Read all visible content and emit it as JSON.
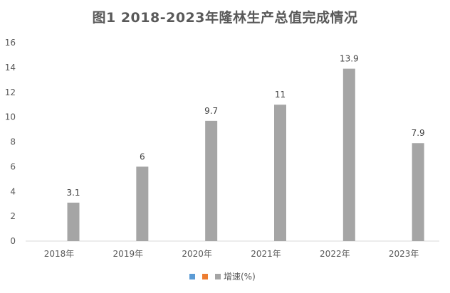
{
  "chart_data": {
    "type": "bar",
    "title": "图1  2018-2023年隆林生产总值完成情况",
    "categories": [
      "2018年",
      "2019年",
      "2020年",
      "2021年",
      "2022年",
      "2023年"
    ],
    "series": [
      {
        "name": "",
        "values": [
          null,
          null,
          null,
          null,
          null,
          null
        ],
        "color": "#5B9BD5"
      },
      {
        "name": "",
        "values": [
          null,
          null,
          null,
          null,
          null,
          null
        ],
        "color": "#ED7D31"
      },
      {
        "name": "增速(%)",
        "values": [
          3.1,
          6,
          9.7,
          11,
          13.9,
          7.9
        ],
        "color": "#A5A5A5"
      }
    ],
    "data_labels": [
      "3.1",
      "6",
      "9.7",
      "11",
      "13.9",
      "7.9"
    ],
    "yticks": [
      "0",
      "2",
      "4",
      "6",
      "8",
      "10",
      "12",
      "14",
      "16"
    ],
    "ylim": [
      0,
      16
    ],
    "grid": false,
    "legend": "bottom",
    "xlabel": "",
    "ylabel": ""
  }
}
